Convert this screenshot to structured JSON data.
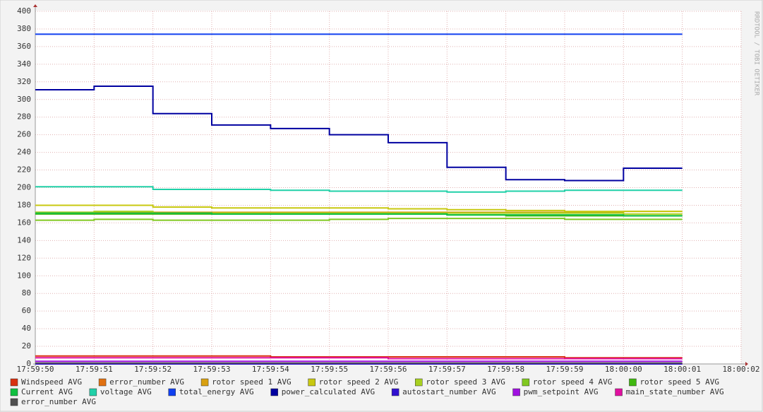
{
  "chart_data": {
    "type": "step",
    "watermark": "RRDTOOL / TOBI OETIKER",
    "x": [
      "17:59:50",
      "17:59:51",
      "17:59:52",
      "17:59:53",
      "17:59:54",
      "17:59:55",
      "17:59:56",
      "17:59:57",
      "17:59:58",
      "17:59:59",
      "18:00:00"
    ],
    "xlim": [
      "17:59:50",
      "18:00:02"
    ],
    "xticks": [
      "17:59:50",
      "17:59:51",
      "17:59:52",
      "17:59:53",
      "17:59:54",
      "17:59:55",
      "17:59:56",
      "17:59:57",
      "17:59:58",
      "17:59:59",
      "18:00:00",
      "18:00:01",
      "18:00:02"
    ],
    "ylim": [
      0,
      400
    ],
    "yticks": [
      0,
      20,
      40,
      60,
      80,
      100,
      120,
      140,
      160,
      180,
      200,
      220,
      240,
      260,
      280,
      300,
      320,
      340,
      360,
      380,
      400
    ],
    "grid": true,
    "series": [
      {
        "name": "Windspeed AVG",
        "color": "#d83010",
        "values": [
          9,
          9,
          9,
          9,
          8,
          8,
          8,
          8,
          8,
          7,
          7
        ]
      },
      {
        "name": "error_number AVG",
        "color": "#e07010",
        "values": [
          0,
          0,
          0,
          0,
          0,
          0,
          0,
          0,
          0,
          0,
          0
        ]
      },
      {
        "name": "rotor speed 1 AVG",
        "color": "#d8a010",
        "values": [
          172,
          172,
          172,
          172,
          172,
          172,
          172,
          172,
          172,
          172,
          173
        ]
      },
      {
        "name": "rotor speed 2 AVG",
        "color": "#c8c810",
        "values": [
          180,
          180,
          178,
          177,
          177,
          177,
          176,
          175,
          174,
          173,
          173
        ]
      },
      {
        "name": "rotor speed 3 AVG",
        "color": "#a8d020",
        "values": [
          172,
          173,
          171,
          171,
          171,
          171,
          171,
          171,
          171,
          171,
          170
        ]
      },
      {
        "name": "rotor speed 4 AVG",
        "color": "#80c820",
        "values": [
          163,
          164,
          163,
          163,
          163,
          164,
          165,
          165,
          165,
          164,
          164
        ]
      },
      {
        "name": "rotor speed 5 AVG",
        "color": "#40b810",
        "values": [
          170,
          170,
          170,
          170,
          170,
          170,
          170,
          169,
          168,
          168,
          168
        ]
      },
      {
        "name": "Current AVG",
        "color": "#10c040",
        "values": [
          171,
          171,
          171,
          170,
          170,
          170,
          170,
          169,
          169,
          169,
          168
        ]
      },
      {
        "name": "voltage AVG",
        "color": "#20d0a8",
        "values": [
          201,
          201,
          198,
          198,
          197,
          196,
          196,
          195,
          196,
          197,
          197
        ]
      },
      {
        "name": "total_energy AVG",
        "color": "#1040f0",
        "values": [
          374,
          374,
          374,
          374,
          374,
          374,
          374,
          374,
          374,
          374,
          374
        ]
      },
      {
        "name": "power_calculated AVG",
        "color": "#0000a0",
        "values": [
          311,
          315,
          284,
          271,
          267,
          260,
          251,
          223,
          209,
          208,
          222
        ]
      },
      {
        "name": "autostart_number AVG",
        "color": "#3010d0",
        "values": [
          0,
          0,
          0,
          0,
          0,
          0,
          0,
          0,
          0,
          0,
          0
        ]
      },
      {
        "name": "pwm_setpoint AVG",
        "color": "#a010e0",
        "values": [
          3,
          3,
          3,
          3,
          3,
          3,
          3,
          3,
          3,
          3,
          3
        ]
      },
      {
        "name": "main_state_number AVG",
        "color": "#e010a0",
        "values": [
          7,
          7,
          7,
          7,
          7,
          7,
          6,
          6,
          6,
          6,
          6
        ]
      },
      {
        "name": "error_number AVG",
        "color": "#505050",
        "values": [
          1,
          1,
          1,
          1,
          1,
          1,
          1,
          1,
          1,
          1,
          1
        ]
      }
    ]
  }
}
